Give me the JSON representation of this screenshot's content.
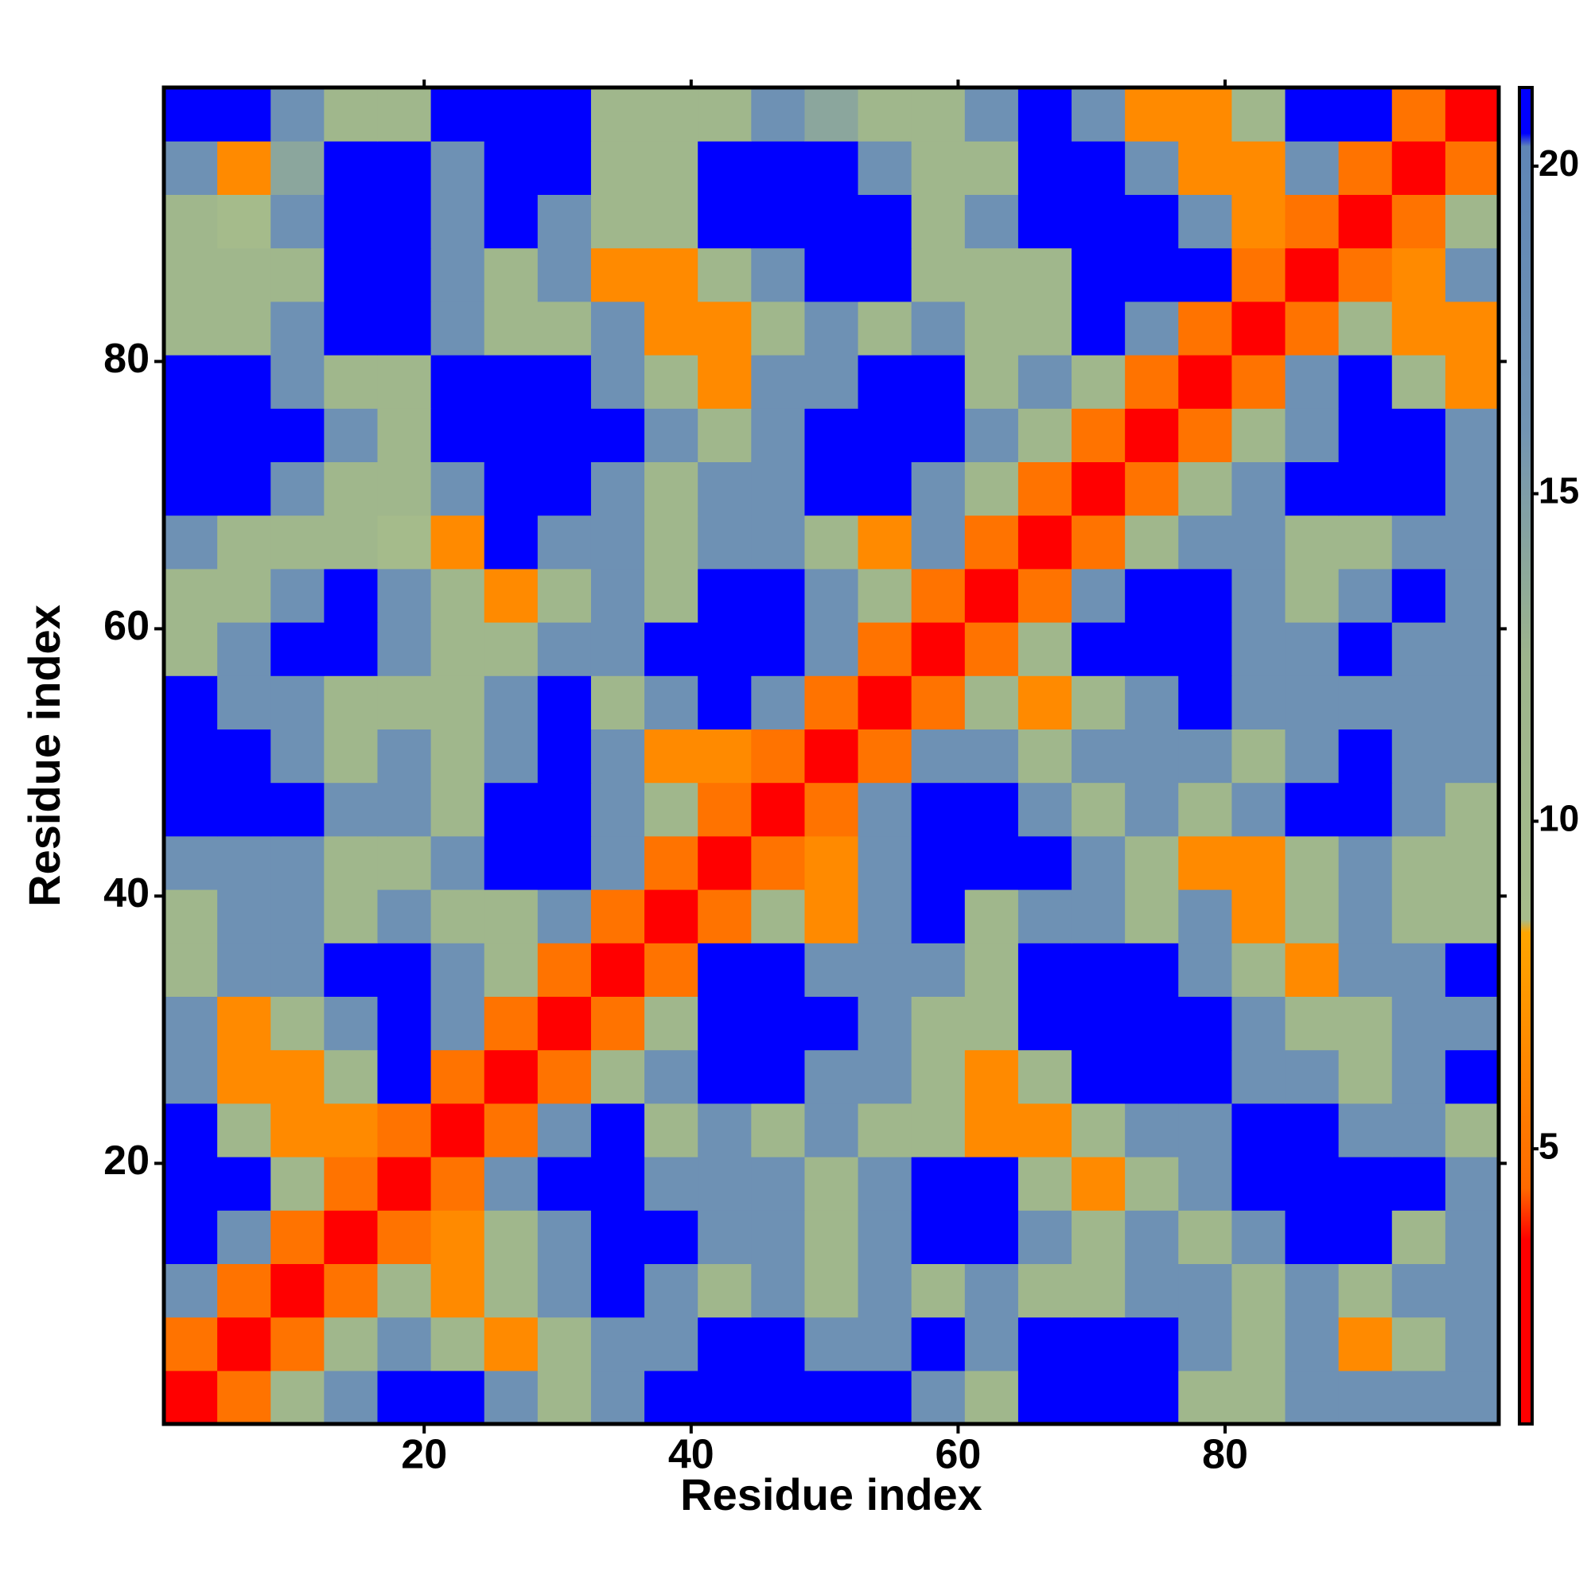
{
  "chart_data": {
    "type": "heatmap",
    "x_label": "Residue index",
    "y_label": "Residue index",
    "x": [
      2.5,
      6.5,
      10.5,
      14.5,
      18.5,
      22.5,
      26.5,
      30.5,
      34.5,
      38.5,
      42.5,
      46.5,
      50.5,
      54.5,
      58.5,
      62.5,
      66.5,
      70.5,
      74.5,
      78.5,
      82.5,
      86.5,
      90.5,
      94.5,
      98.5
    ],
    "y": [
      2.5,
      6.5,
      10.5,
      14.5,
      18.5,
      22.5,
      26.5,
      30.5,
      34.5,
      38.5,
      42.5,
      46.5,
      50.5,
      54.5,
      58.5,
      62.5,
      66.5,
      70.5,
      74.5,
      78.5,
      82.5,
      86.5,
      90.5,
      94.5,
      98.5
    ],
    "z": [
      [
        1.5,
        5,
        11,
        17,
        21,
        21,
        17,
        11,
        17,
        21,
        21,
        21,
        21,
        21,
        17,
        11,
        21,
        21,
        21,
        11,
        11,
        17,
        17,
        17,
        17
      ],
      [
        5,
        1.5,
        5,
        11,
        17,
        11,
        6.5,
        11,
        17,
        17,
        21,
        21,
        17,
        17,
        21,
        17,
        21,
        21,
        21,
        17,
        11,
        17,
        6.5,
        11,
        17
      ],
      [
        17,
        5,
        1.5,
        5,
        11,
        6.5,
        11,
        17,
        21,
        17,
        11,
        17,
        11,
        17,
        11,
        17,
        11,
        11,
        17,
        17,
        11,
        17,
        11,
        17,
        17
      ],
      [
        21,
        17,
        5,
        1.5,
        5,
        6.5,
        11,
        17,
        21,
        21,
        17,
        17,
        11,
        17,
        21,
        21,
        17,
        11,
        17,
        11,
        17,
        21,
        21,
        11,
        17
      ],
      [
        21,
        21,
        11,
        5,
        1.5,
        5,
        17,
        21,
        21,
        17,
        17,
        17,
        11,
        17,
        21,
        21,
        11,
        6.5,
        11,
        17,
        21,
        21,
        21,
        21,
        17
      ],
      [
        21,
        11,
        6.5,
        6.5,
        5,
        1.5,
        5,
        17,
        21,
        11,
        17,
        11,
        17,
        11,
        11,
        6.5,
        6.5,
        11,
        17,
        17,
        21,
        21,
        17,
        17,
        11
      ],
      [
        17,
        6.5,
        6.5,
        11,
        21,
        5,
        1.5,
        5,
        11,
        17,
        21,
        21,
        17,
        17,
        11,
        6.5,
        11,
        21,
        21,
        21,
        17,
        17,
        11,
        17,
        21
      ],
      [
        17,
        6.5,
        11,
        17,
        21,
        17,
        5,
        1.5,
        5,
        11,
        21,
        21,
        21,
        17,
        11,
        11,
        21,
        21,
        21,
        21,
        17,
        11,
        11,
        17,
        17
      ],
      [
        11,
        17,
        17,
        21,
        21,
        17,
        11,
        5,
        1.5,
        5,
        21,
        21,
        17,
        17,
        17,
        11,
        21,
        21,
        21,
        17,
        11,
        6.5,
        17,
        17,
        21
      ],
      [
        11,
        17,
        17,
        11,
        17,
        11,
        11,
        17,
        5,
        1.5,
        5,
        11,
        6.5,
        17,
        21,
        11,
        17,
        17,
        11,
        17,
        6.5,
        11,
        17,
        11,
        11
      ],
      [
        17,
        17,
        17,
        11,
        11,
        17,
        21,
        21,
        17,
        5,
        1.5,
        5,
        6.5,
        17,
        21,
        21,
        21,
        17,
        11,
        6.5,
        6.5,
        11,
        17,
        11,
        11
      ],
      [
        21,
        21,
        21,
        17,
        17,
        11,
        21,
        21,
        17,
        11,
        5,
        1.5,
        5,
        17,
        21,
        21,
        17,
        11,
        17,
        11,
        17,
        21,
        21,
        17,
        11
      ],
      [
        21,
        21,
        17,
        11,
        17,
        11,
        17,
        21,
        17,
        6.5,
        6.5,
        5,
        1.5,
        5,
        17,
        17,
        11,
        17,
        17,
        17,
        11,
        17,
        21,
        17,
        17
      ],
      [
        21,
        17,
        17,
        11,
        11,
        11,
        17,
        21,
        11,
        17,
        21,
        17,
        5,
        1.5,
        5,
        11,
        6.5,
        11,
        17,
        21,
        17,
        17,
        17,
        17,
        17
      ],
      [
        11,
        17,
        21,
        21,
        17,
        11,
        11,
        17,
        17,
        21,
        21,
        21,
        17,
        5,
        1.5,
        5,
        11,
        21,
        21,
        21,
        17,
        17,
        21,
        17,
        17
      ],
      [
        11,
        11,
        17,
        21,
        17,
        11,
        6.5,
        11,
        17,
        11,
        21,
        21,
        17,
        11,
        5,
        1.5,
        5,
        17,
        21,
        21,
        17,
        11,
        17,
        21,
        17
      ],
      [
        17,
        11,
        11,
        11,
        9,
        6.5,
        21,
        17,
        17,
        11,
        17,
        17,
        11,
        6.5,
        17,
        5,
        1.5,
        5,
        11,
        17,
        17,
        11,
        11,
        17,
        17
      ],
      [
        21,
        21,
        17,
        11,
        11,
        17,
        21,
        21,
        17,
        11,
        17,
        17,
        21,
        21,
        17,
        11,
        5,
        1.5,
        5,
        11,
        17,
        21,
        21,
        21,
        17
      ],
      [
        21,
        21,
        21,
        17,
        11,
        21,
        21,
        21,
        21,
        17,
        11,
        17,
        21,
        21,
        21,
        17,
        11,
        5,
        1.5,
        5,
        11,
        17,
        21,
        21,
        17
      ],
      [
        21,
        21,
        17,
        11,
        11,
        21,
        21,
        21,
        17,
        11,
        6.5,
        17,
        17,
        21,
        21,
        11,
        17,
        11,
        5,
        1.5,
        5,
        17,
        21,
        11,
        6.5
      ],
      [
        11,
        11,
        17,
        21,
        21,
        17,
        11,
        11,
        17,
        6.5,
        6.5,
        11,
        17,
        11,
        17,
        11,
        11,
        21,
        17,
        5,
        1.5,
        5,
        11,
        6.5,
        6.5
      ],
      [
        11,
        11,
        11,
        21,
        21,
        17,
        11,
        17,
        6.5,
        6.5,
        11,
        17,
        21,
        21,
        11,
        11,
        11,
        21,
        21,
        21,
        5,
        1.5,
        5,
        6.5,
        17
      ],
      [
        11,
        9,
        17,
        21,
        21,
        17,
        21,
        17,
        11,
        11,
        21,
        21,
        21,
        21,
        11,
        17,
        21,
        21,
        21,
        17,
        6.5,
        5,
        1.5,
        5,
        11
      ],
      [
        17,
        6.5,
        14,
        21,
        21,
        17,
        21,
        21,
        11,
        11,
        21,
        21,
        21,
        17,
        11,
        11,
        21,
        21,
        17,
        6.5,
        6.5,
        17,
        5,
        1.5,
        5
      ],
      [
        21,
        21,
        17,
        11,
        11,
        21,
        21,
        21,
        11,
        11,
        11,
        17,
        14,
        11,
        11,
        17,
        21,
        17,
        6.5,
        6.5,
        11,
        21,
        21,
        5,
        1.5
      ]
    ],
    "xlim": [
      0.5,
      100.5
    ],
    "ylim": [
      0.5,
      100.5
    ],
    "xticks": [
      20,
      40,
      60,
      80
    ],
    "yticks": [
      20,
      40,
      60,
      80
    ],
    "zlim": [
      0.8,
      21.2
    ],
    "zticks": [
      5,
      10,
      15,
      20
    ],
    "colorscale": [
      [
        0.8,
        "#ff0000"
      ],
      [
        3.6,
        "#ff0000"
      ],
      [
        4.4,
        "#ff6a00"
      ],
      [
        8.3,
        "#ffa500"
      ],
      [
        8.5,
        "#a6bc8b"
      ],
      [
        12.5,
        "#9db48c"
      ],
      [
        16,
        "#7294b3"
      ],
      [
        20.3,
        "#5f86b6"
      ],
      [
        20.5,
        "#0000ff"
      ],
      [
        21.2,
        "#0000ff"
      ]
    ]
  }
}
